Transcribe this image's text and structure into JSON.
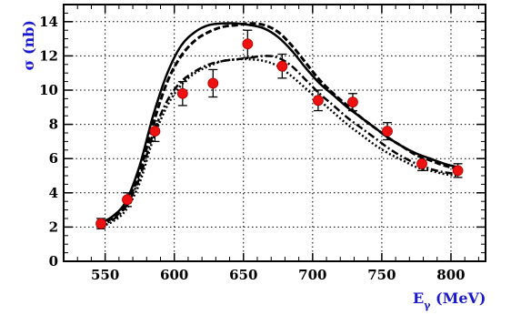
{
  "chart_data": {
    "type": "scatter",
    "title": "",
    "xlabel_main": "E",
    "xlabel_sub": "γ",
    "xlabel_unit": " (MeV)",
    "ylabel": "σ (nb)",
    "xlim": [
      520,
      825
    ],
    "ylim": [
      0,
      15
    ],
    "x_ticks": [
      550,
      600,
      650,
      700,
      750,
      800
    ],
    "y_ticks": [
      0,
      2,
      4,
      6,
      8,
      10,
      12,
      14
    ],
    "grid": true,
    "legend": "none",
    "colors": {
      "points": "#ee1111",
      "axis_title": "#1a1acc",
      "curves": "#000000"
    },
    "points": [
      {
        "x": 547,
        "y": 2.2,
        "err": 0.3
      },
      {
        "x": 566,
        "y": 3.6,
        "err": 0.4
      },
      {
        "x": 586,
        "y": 7.6,
        "err": 0.6
      },
      {
        "x": 606,
        "y": 9.8,
        "err": 0.7
      },
      {
        "x": 628,
        "y": 10.4,
        "err": 0.8
      },
      {
        "x": 653,
        "y": 12.7,
        "err": 0.8
      },
      {
        "x": 678,
        "y": 11.4,
        "err": 0.7
      },
      {
        "x": 704,
        "y": 9.4,
        "err": 0.6
      },
      {
        "x": 729,
        "y": 9.3,
        "err": 0.5
      },
      {
        "x": 754,
        "y": 7.6,
        "err": 0.5
      },
      {
        "x": 779,
        "y": 5.7,
        "err": 0.4
      },
      {
        "x": 805,
        "y": 5.3,
        "err": 0.4
      }
    ],
    "series": [
      {
        "style": "solid",
        "x": [
          545,
          555,
          565,
          575,
          585,
          595,
          605,
          615,
          625,
          635,
          645,
          655,
          665,
          675,
          685,
          695,
          705,
          715,
          725,
          735,
          745,
          755,
          765,
          775,
          785,
          795,
          805
        ],
        "y": [
          2.2,
          2.6,
          3.5,
          5.6,
          8.6,
          11.0,
          12.6,
          13.4,
          13.8,
          13.9,
          13.9,
          13.8,
          13.6,
          13.1,
          12.3,
          11.3,
          10.4,
          9.7,
          9.0,
          8.4,
          7.8,
          7.2,
          6.7,
          6.3,
          6.0,
          5.7,
          5.5
        ]
      },
      {
        "style": "dashed",
        "x": [
          545,
          555,
          565,
          575,
          585,
          595,
          605,
          615,
          625,
          635,
          645,
          655,
          665,
          675,
          685,
          695,
          705,
          715,
          725,
          735,
          745,
          755,
          765,
          775,
          785,
          795,
          805
        ],
        "y": [
          2.2,
          2.5,
          3.3,
          5.2,
          8.1,
          10.5,
          12.0,
          12.9,
          13.4,
          13.7,
          13.8,
          13.9,
          13.8,
          13.4,
          12.6,
          11.6,
          10.6,
          9.8,
          9.1,
          8.4,
          7.8,
          7.2,
          6.7,
          6.2,
          5.9,
          5.6,
          5.4
        ]
      },
      {
        "style": "dashdot",
        "x": [
          545,
          555,
          565,
          575,
          585,
          595,
          605,
          615,
          625,
          635,
          645,
          655,
          665,
          675,
          685,
          695,
          705,
          715,
          725,
          735,
          745,
          755,
          765,
          775,
          785,
          795,
          805
        ],
        "y": [
          2.1,
          2.4,
          3.2,
          4.9,
          7.5,
          9.4,
          10.5,
          11.1,
          11.5,
          11.7,
          11.8,
          11.9,
          12.0,
          11.9,
          11.4,
          10.6,
          9.8,
          9.1,
          8.4,
          7.8,
          7.2,
          6.6,
          6.1,
          5.7,
          5.4,
          5.2,
          5.1
        ]
      },
      {
        "style": "dotted",
        "x": [
          545,
          555,
          565,
          575,
          585,
          595,
          605,
          615,
          625,
          635,
          645,
          655,
          665,
          675,
          685,
          695,
          705,
          715,
          725,
          735,
          745,
          755,
          765,
          775,
          785,
          795,
          805
        ],
        "y": [
          2.0,
          2.3,
          3.0,
          4.6,
          7.2,
          9.1,
          10.3,
          11.0,
          11.4,
          11.7,
          11.8,
          11.8,
          11.7,
          11.4,
          10.8,
          10.1,
          9.4,
          8.7,
          8.0,
          7.4,
          6.8,
          6.3,
          5.9,
          5.5,
          5.3,
          5.1,
          5.0
        ]
      }
    ]
  }
}
